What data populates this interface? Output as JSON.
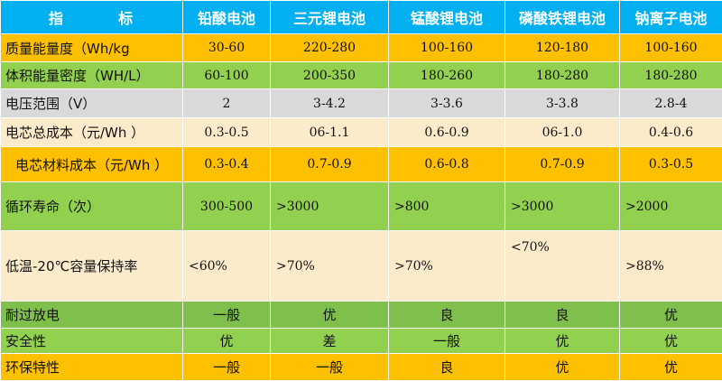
{
  "header": {
    "label_a": "指",
    "label_b": "标",
    "columns": [
      "铅酸电池",
      "三元锂电池",
      "锰酸锂电池",
      "磷酸铁锂电池",
      "钠离子电池"
    ]
  },
  "rows": [
    {
      "label": "质量能量度（Wh/kg",
      "values": [
        "30-60",
        "220-280",
        "100-160",
        "120-180",
        "100-160"
      ]
    },
    {
      "label": "体积能量密度（WH/L）",
      "values": [
        "60-100",
        "200-350",
        "180-260",
        "180-280",
        "180-280"
      ]
    },
    {
      "label": "电压范围（V）",
      "values": [
        "2",
        "3-4.2",
        "3-3.6",
        "3-3.8",
        "2.8-4"
      ]
    },
    {
      "label": "电芯总成本（元/Wh ）",
      "values": [
        "0.3-0.5",
        "06-1.1",
        "0.6-0.9",
        "06-1.0",
        "0.4-0.6"
      ]
    },
    {
      "label": "电芯材料成本（元/Wh ）",
      "values": [
        "0.3-0.4",
        "0.7-0.9",
        "0.6-0.8",
        "0.7-0.9",
        "0.3-0.5"
      ]
    },
    {
      "label": "循环寿命（次）",
      "values": [
        "300-500",
        ">3000",
        ">800",
        ">3000",
        ">2000"
      ]
    },
    {
      "label": "低温-20℃容量保持率",
      "values": [
        "<60%",
        ">70%",
        ">70%",
        "<70%",
        ">88%"
      ]
    },
    {
      "label": "耐过放电",
      "values": [
        "一般",
        "优",
        "良",
        "良",
        "优"
      ]
    },
    {
      "label": "安全性",
      "values": [
        "优",
        "差",
        "一般",
        "优",
        "优"
      ]
    },
    {
      "label": "环保特性",
      "values": [
        "一般",
        "一般",
        "良",
        "优",
        "优"
      ]
    }
  ]
}
